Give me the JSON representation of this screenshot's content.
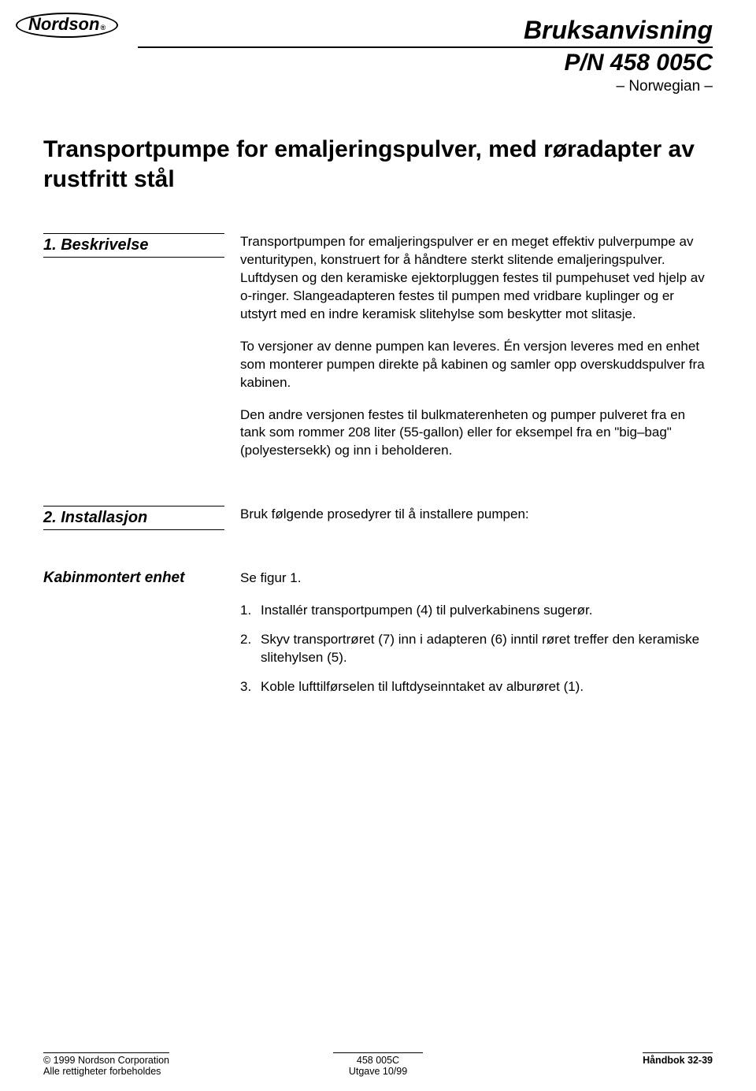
{
  "logo": {
    "brand": "Nordson"
  },
  "header": {
    "title": "Bruksanvisning",
    "pn": "P/N 458 005C",
    "language": "– Norwegian –"
  },
  "main_title": "Transportpumpe for emaljeringspulver, med røradapter av rustfritt stål",
  "sections": {
    "s1": {
      "label": "1. Beskrivelse",
      "p1": "Transportpumpen for emaljeringspulver er en meget effektiv pulverpumpe av venturitypen, konstruert for å håndtere sterkt slitende emaljeringspulver. Luftdysen og den keramiske ejektorpluggen festes til pumpehuset ved hjelp av o-ringer. Slangeadapteren festes til pumpen med vridbare kuplinger og er utstyrt med en indre keramisk slitehylse som beskytter mot slitasje.",
      "p2": "To versjoner av denne pumpen kan leveres. Én versjon leveres med en enhet som monterer pumpen direkte på kabinen og samler opp overskuddspulver fra kabinen.",
      "p3": "Den andre versjonen festes til bulkmaterenheten og pumper pulveret fra en tank som rommer 208 liter (55-gallon) eller for eksempel fra en \"big–bag\" (polyestersekk) og inn i beholderen."
    },
    "s2": {
      "label": "2. Installasjon",
      "intro": "Bruk følgende prosedyrer til å installere pumpen:"
    },
    "s3": {
      "label": "Kabinmontert enhet",
      "see": "Se figur 1.",
      "items": {
        "i1": "Installér transportpumpen (4) til pulverkabinens sugerør.",
        "i2": "Skyv transportrøret (7) inn i adapteren (6) inntil røret treffer den keramiske slitehylsen (5).",
        "i3": "Koble lufttilførselen til luftdyseinntaket av alburøret (1)."
      }
    }
  },
  "footer": {
    "copyright": "© 1999 Nordson Corporation",
    "rights": "Alle rettigheter forbeholdes",
    "doc": "458 005C",
    "issue": "Utgave 10/99",
    "handbook": "Håndbok 32-39"
  },
  "style": {
    "page_bg": "#ffffff",
    "text_color": "#000000",
    "body_fontsize": 17,
    "title_fontsize": 30,
    "header_fontsize": 32,
    "section_label_fontsize": 20,
    "footer_fontsize": 12.5
  }
}
